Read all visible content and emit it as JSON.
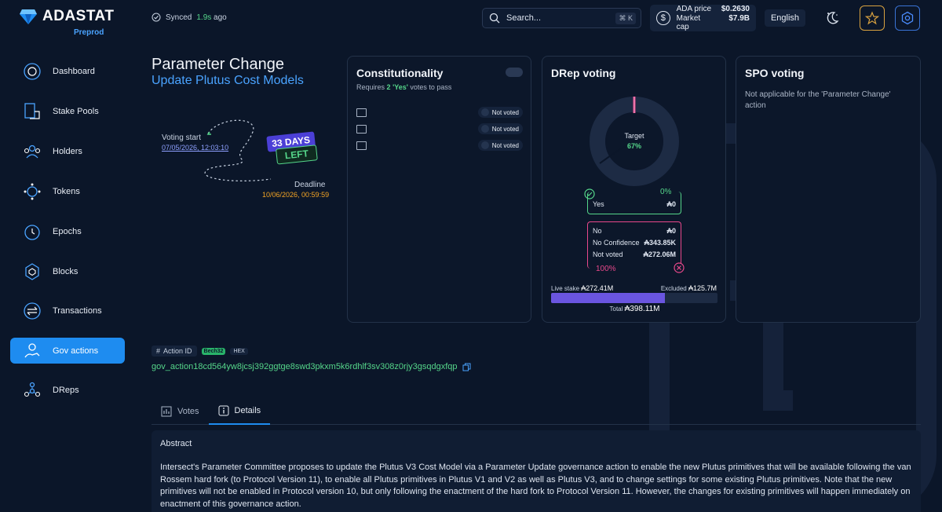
{
  "header": {
    "logo_text": "ADASTAT",
    "network": "Preprod",
    "synced_prefix": "Synced",
    "synced_time": "1.9s",
    "synced_suffix": "ago",
    "search_placeholder": "Search...",
    "search_shortcut": "⌘ K",
    "ada_price_label": "ADA price",
    "ada_price_value": "$0.2630",
    "market_cap_label": "Market cap",
    "market_cap_value": "$7.9B",
    "language": "English"
  },
  "sidebar": {
    "items": [
      {
        "label": "Dashboard",
        "icon": "dashboard-icon"
      },
      {
        "label": "Stake Pools",
        "icon": "stake-pools-icon"
      },
      {
        "label": "Holders",
        "icon": "holders-icon"
      },
      {
        "label": "Tokens",
        "icon": "tokens-icon"
      },
      {
        "label": "Epochs",
        "icon": "epochs-icon"
      },
      {
        "label": "Blocks",
        "icon": "blocks-icon"
      },
      {
        "label": "Transactions",
        "icon": "transactions-icon"
      },
      {
        "label": "Gov actions",
        "icon": "gov-actions-icon",
        "active": true
      },
      {
        "label": "DReps",
        "icon": "dreps-icon"
      }
    ]
  },
  "action": {
    "title": "Parameter Change",
    "subtitle": "Update Plutus Cost Models",
    "voting_start_label": "Voting start",
    "voting_start_date": "07/05/2026, 12:03:10",
    "days_left": "33 DAYS",
    "left_label": "LEFT",
    "deadline_label": "Deadline",
    "deadline_date": "10/06/2026, 00:59:59"
  },
  "constitutionality": {
    "title": "Constitutionality",
    "requires_prefix": "Requires",
    "requires_count": "2",
    "requires_yes": "'Yes'",
    "requires_suffix": "votes to pass",
    "members": [
      {
        "status": "Not voted"
      },
      {
        "status": "Not voted"
      },
      {
        "status": "Not voted"
      }
    ]
  },
  "drep": {
    "title": "DRep voting",
    "target_label": "Target",
    "target_value": "67%",
    "yes_pct": "0%",
    "yes_label": "Yes",
    "yes_value": "₳0",
    "no_label": "No",
    "no_value": "₳0",
    "no_conf_label": "No Confidence",
    "no_conf_value": "₳343.85K",
    "not_voted_label": "Not voted",
    "not_voted_value": "₳272.06M",
    "no_pct": "100%",
    "live_stake_label": "Live stake",
    "live_stake_value": "₳272.41M",
    "excluded_label": "Excluded",
    "excluded_value": "₳125.7M",
    "total_label": "Total",
    "total_value": "₳398.11M",
    "live_stake_fraction": 0.684
  },
  "spo": {
    "title": "SPO voting",
    "text": "Not applicable for the 'Parameter Change' action"
  },
  "action_id": {
    "label": "Action ID",
    "format_bech": "Bech32",
    "format_hex": "HEX",
    "value": "gov_action18cd564yw8jcsj392ggtge8swd3pkxm5k6rdhlf3sv308z0rjy3gsqdgxfqp"
  },
  "tabs": [
    {
      "label": "Votes"
    },
    {
      "label": "Details",
      "active": true
    }
  ],
  "details": {
    "heading": "Abstract",
    "text": "Intersect's Parameter Committee proposes to update the Plutus V3 Cost Model via a Parameter Update governance action to enable the new Plutus primitives that will be available following the van Rossem hard fork (to Protocol Version 11), to enable all Plutus primitives in Plutus V1 and V2 as well as Plutus V3, and to change settings for some existing Plutus primitives. Note that the new primitives will not be enabled in Protocol version 10, but only following the enactment of the hard fork to Protocol Version 11. However, the changes for existing primitives will happen immediately on enactment of this governance action."
  },
  "colors": {
    "accent": "#1e8cf0",
    "yes_green": "#55d68a",
    "no_pink": "#e8488b",
    "bar_purple": "#6a55e0"
  }
}
